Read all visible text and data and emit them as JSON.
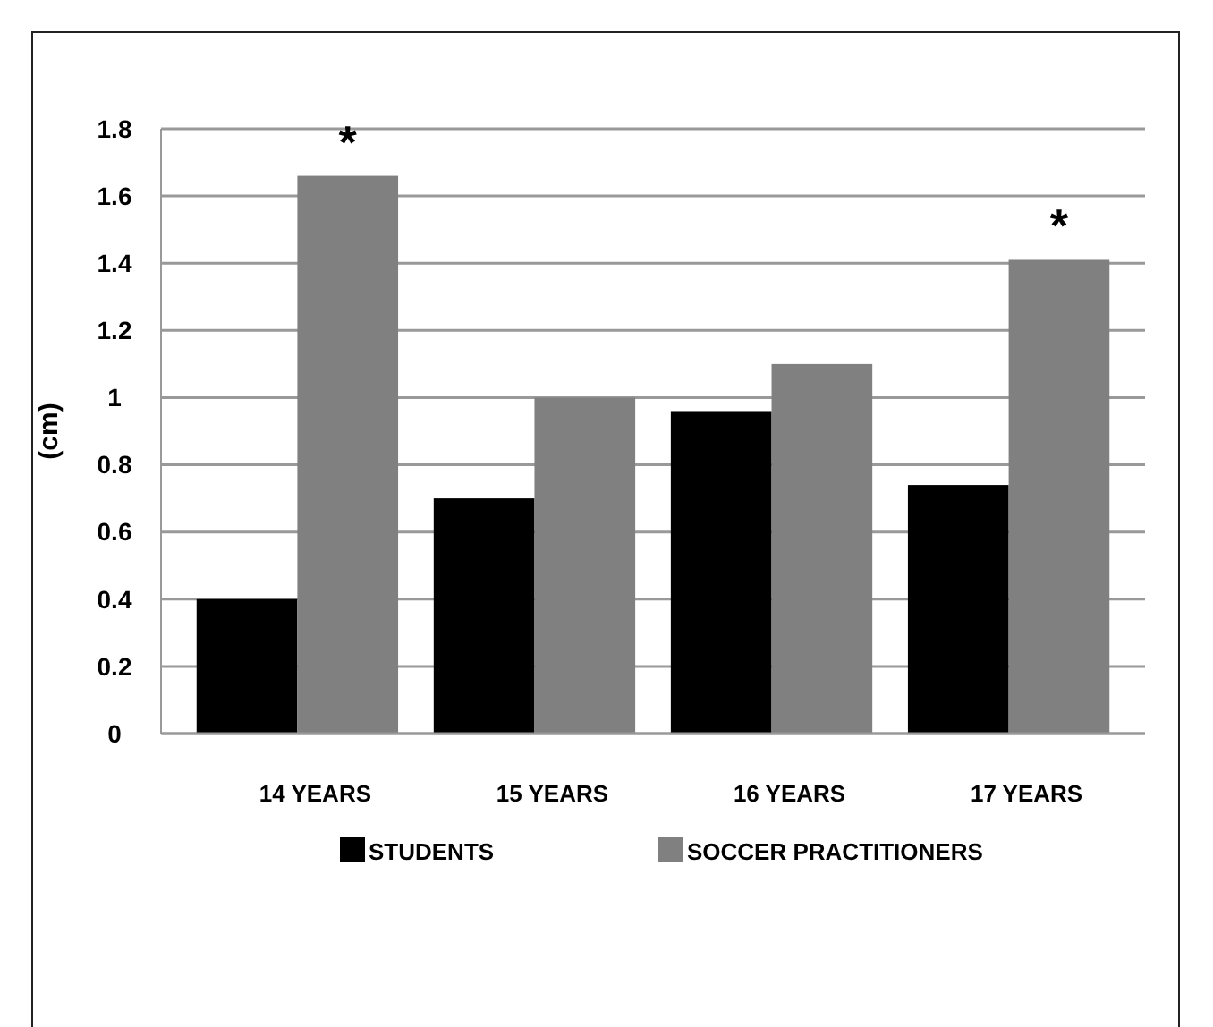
{
  "chart_data": {
    "type": "bar",
    "ylabel": "(cm)",
    "categories": [
      "14 YEARS",
      "15 YEARS",
      "16 YEARS",
      "17 YEARS"
    ],
    "series": [
      {
        "name": "STUDENTS",
        "color": "#000000",
        "values": [
          0.4,
          0.7,
          0.96,
          0.74
        ]
      },
      {
        "name": "SOCCER PRACTITIONERS",
        "color": "#808080",
        "values": [
          1.66,
          1.0,
          1.1,
          1.41
        ]
      }
    ],
    "ylim": [
      0,
      1.8
    ],
    "yticks": [
      0,
      0.2,
      0.4,
      0.6,
      0.8,
      1,
      1.2,
      1.4,
      1.6,
      1.8
    ],
    "grid": "y",
    "legend": "bottom",
    "annotations": [
      {
        "text": "*",
        "x": "14 YEARS",
        "y": 1.66
      },
      {
        "text": "*",
        "x": "17 YEARS",
        "y": 1.41
      }
    ]
  }
}
